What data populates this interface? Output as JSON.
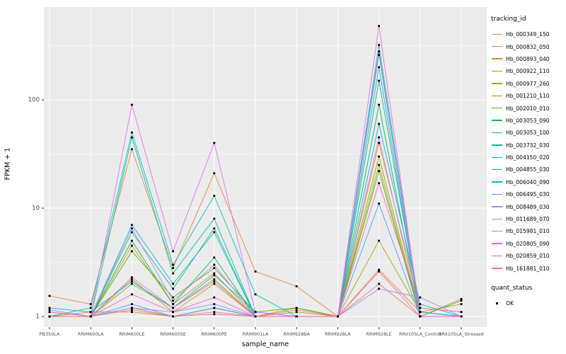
{
  "figure": {
    "y_axis_label": "FPKM + 1",
    "x_axis_label": "sample_name",
    "panel_bg": "#EBEBEB",
    "grid_color": "#FFFFFF",
    "tick_label_color": "#4D4D4D",
    "legend": {
      "color_title": "tracking_id",
      "shape_title": "quant_status",
      "shape_item_label": "OK"
    },
    "y_tick_labels": [
      "1",
      "10",
      "100"
    ]
  },
  "chart_data": {
    "type": "line",
    "title": "",
    "xlabel": "sample_name",
    "ylabel": "FPKM + 1",
    "yscale": "log10",
    "ylim": [
      1,
      700
    ],
    "y_ticks": [
      1,
      10,
      100
    ],
    "grid": true,
    "legend_position": "right",
    "point_color": "#000000",
    "x": [
      "PB350LA",
      "RRIM600LA",
      "RRIM600LE",
      "RRIM600SE",
      "RRIM600PE",
      "RRIM901LA",
      "RRIM928BA",
      "RRIM928LA",
      "RRIM928LE",
      "RRII105LA_Control",
      "RRII105LA_Stressed"
    ],
    "series": [
      {
        "name": "Hb_000349_150",
        "color": "#F8766D",
        "values": [
          1.1,
          1.0,
          1.2,
          1.0,
          1.05,
          1.0,
          1.0,
          1.0,
          2.0,
          1.0,
          1.0
        ]
      },
      {
        "name": "Hb_000832_050",
        "color": "#EA8331",
        "values": [
          1.55,
          1.3,
          35,
          2.8,
          21,
          2.6,
          1.9,
          1.0,
          2.7,
          1.1,
          1.0
        ]
      },
      {
        "name": "Hb_000893_040",
        "color": "#D89000",
        "values": [
          1.0,
          1.0,
          4.5,
          1.3,
          2.5,
          1.0,
          1.2,
          1.0,
          40,
          1.2,
          1.1
        ]
      },
      {
        "name": "Hb_000922_110",
        "color": "#C09B00",
        "values": [
          1.0,
          1.0,
          2.2,
          1.1,
          2.0,
          1.0,
          1.0,
          1.0,
          25,
          1.0,
          1.0
        ]
      },
      {
        "name": "Hb_000977_260",
        "color": "#A3A500",
        "values": [
          1.0,
          1.1,
          1.1,
          1.0,
          1.2,
          1.0,
          1.1,
          1.0,
          5.0,
          1.1,
          1.3
        ]
      },
      {
        "name": "Hb_001210_110",
        "color": "#7CAE00",
        "values": [
          1.0,
          1.0,
          2.0,
          1.2,
          2.2,
          1.0,
          1.0,
          1.0,
          30,
          1.0,
          1.0
        ]
      },
      {
        "name": "Hb_002010_010",
        "color": "#39B600",
        "values": [
          1.0,
          1.0,
          4.0,
          1.5,
          2.8,
          1.1,
          1.2,
          1.0,
          22,
          1.0,
          1.4
        ]
      },
      {
        "name": "Hb_003053_090",
        "color": "#00BB4E",
        "values": [
          1.0,
          1.0,
          5.0,
          1.3,
          3.5,
          1.0,
          1.0,
          1.0,
          90,
          1.0,
          1.0
        ]
      },
      {
        "name": "Hb_003053_100",
        "color": "#00BF7D",
        "values": [
          1.0,
          1.0,
          6.0,
          1.8,
          6.5,
          1.0,
          1.0,
          1.0,
          150,
          1.1,
          1.0
        ]
      },
      {
        "name": "Hb_003732_030",
        "color": "#00C1A3",
        "values": [
          1.0,
          1.0,
          45,
          2.5,
          8.0,
          1.0,
          1.0,
          1.0,
          280,
          1.0,
          1.0
        ]
      },
      {
        "name": "Hb_004150_020",
        "color": "#00BFC4",
        "values": [
          1.0,
          1.2,
          50,
          3.0,
          13,
          1.6,
          1.0,
          1.0,
          320,
          1.1,
          1.0
        ]
      },
      {
        "name": "Hb_004855_030",
        "color": "#00BAE0",
        "values": [
          1.0,
          1.0,
          7.0,
          2.0,
          6.0,
          1.0,
          1.0,
          1.0,
          200,
          1.0,
          1.0
        ]
      },
      {
        "name": "Hb_006040_090",
        "color": "#00B0F6",
        "values": [
          1.2,
          1.1,
          2.1,
          1.2,
          2.4,
          1.1,
          1.0,
          1.0,
          60,
          1.3,
          1.0
        ]
      },
      {
        "name": "Hb_006495_030",
        "color": "#35A2FF",
        "values": [
          1.0,
          1.0,
          1.3,
          1.0,
          1.2,
          1.0,
          1.0,
          1.0,
          11,
          1.0,
          1.0
        ]
      },
      {
        "name": "Hb_008489_030",
        "color": "#9590FF",
        "values": [
          1.15,
          1.0,
          1.2,
          1.1,
          1.3,
          1.0,
          1.0,
          1.0,
          1.8,
          1.5,
          1.0
        ]
      },
      {
        "name": "Hb_011689_070",
        "color": "#C77CFF",
        "values": [
          1.0,
          1.0,
          6.5,
          1.4,
          3.0,
          1.0,
          1.0,
          1.0,
          45,
          1.0,
          1.0
        ]
      },
      {
        "name": "Hb_015981_010",
        "color": "#E76BF3",
        "values": [
          1.0,
          1.0,
          90,
          4.0,
          40,
          1.1,
          1.0,
          1.0,
          260,
          1.0,
          1.0
        ]
      },
      {
        "name": "Hb_020805_090",
        "color": "#FA62DB",
        "values": [
          1.0,
          1.0,
          2.3,
          1.2,
          2.1,
          1.0,
          1.0,
          1.0,
          480,
          1.0,
          1.0
        ]
      },
      {
        "name": "Hb_020859_010",
        "color": "#FF62BC",
        "values": [
          1.1,
          1.0,
          1.6,
          1.1,
          1.5,
          1.0,
          1.0,
          1.0,
          17,
          1.2,
          1.1
        ]
      },
      {
        "name": "Hb_161881_010",
        "color": "#FF6A98",
        "values": [
          1.0,
          1.0,
          1.15,
          1.0,
          1.1,
          1.0,
          1.15,
          1.0,
          2.6,
          1.0,
          1.45
        ]
      }
    ]
  }
}
